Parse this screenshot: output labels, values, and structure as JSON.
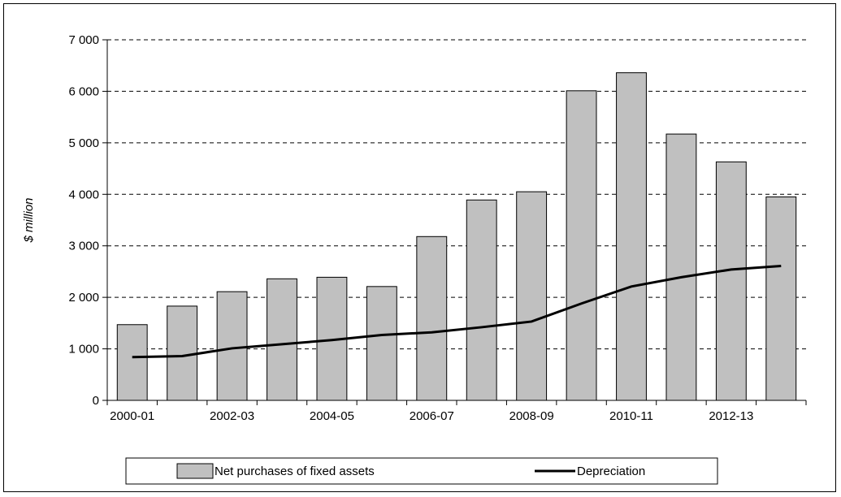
{
  "chart_data": {
    "type": "bar",
    "categories": [
      "2000-01",
      "2001-02",
      "2002-03",
      "2003-04",
      "2004-05",
      "2005-06",
      "2006-07",
      "2007-08",
      "2008-09",
      "2009-10",
      "2010-11",
      "2011-12",
      "2012-13",
      "2013-14"
    ],
    "tick_labels": [
      "2000-01",
      "2002-03",
      "2004-05",
      "2006-07",
      "2008-09",
      "2010-11",
      "2012-13"
    ],
    "labeled_category_indices": [
      0,
      2,
      4,
      6,
      8,
      10,
      12
    ],
    "series": [
      {
        "name": "Net purchases of fixed assets",
        "type": "bar",
        "color": "#c0c0c0",
        "values": [
          1470,
          1830,
          2110,
          2360,
          2390,
          2210,
          3180,
          3890,
          4050,
          6010,
          6360,
          5170,
          4630,
          3950
        ]
      },
      {
        "name": "Depreciation",
        "type": "line",
        "color": "#000000",
        "values": [
          840,
          860,
          1010,
          1090,
          1170,
          1270,
          1320,
          1420,
          1530,
          1880,
          2210,
          2390,
          2540,
          2610
        ]
      }
    ],
    "ylabel": "$ million",
    "ylim": [
      0,
      7000
    ],
    "yticks": [
      0,
      1000,
      2000,
      3000,
      4000,
      5000,
      6000,
      7000
    ],
    "ytick_labels": [
      "0",
      "1 000",
      "2 000",
      "3 000",
      "4 000",
      "5 000",
      "6 000",
      "7 000"
    ],
    "grid": "horizontal dashed",
    "legend_position": "bottom"
  }
}
